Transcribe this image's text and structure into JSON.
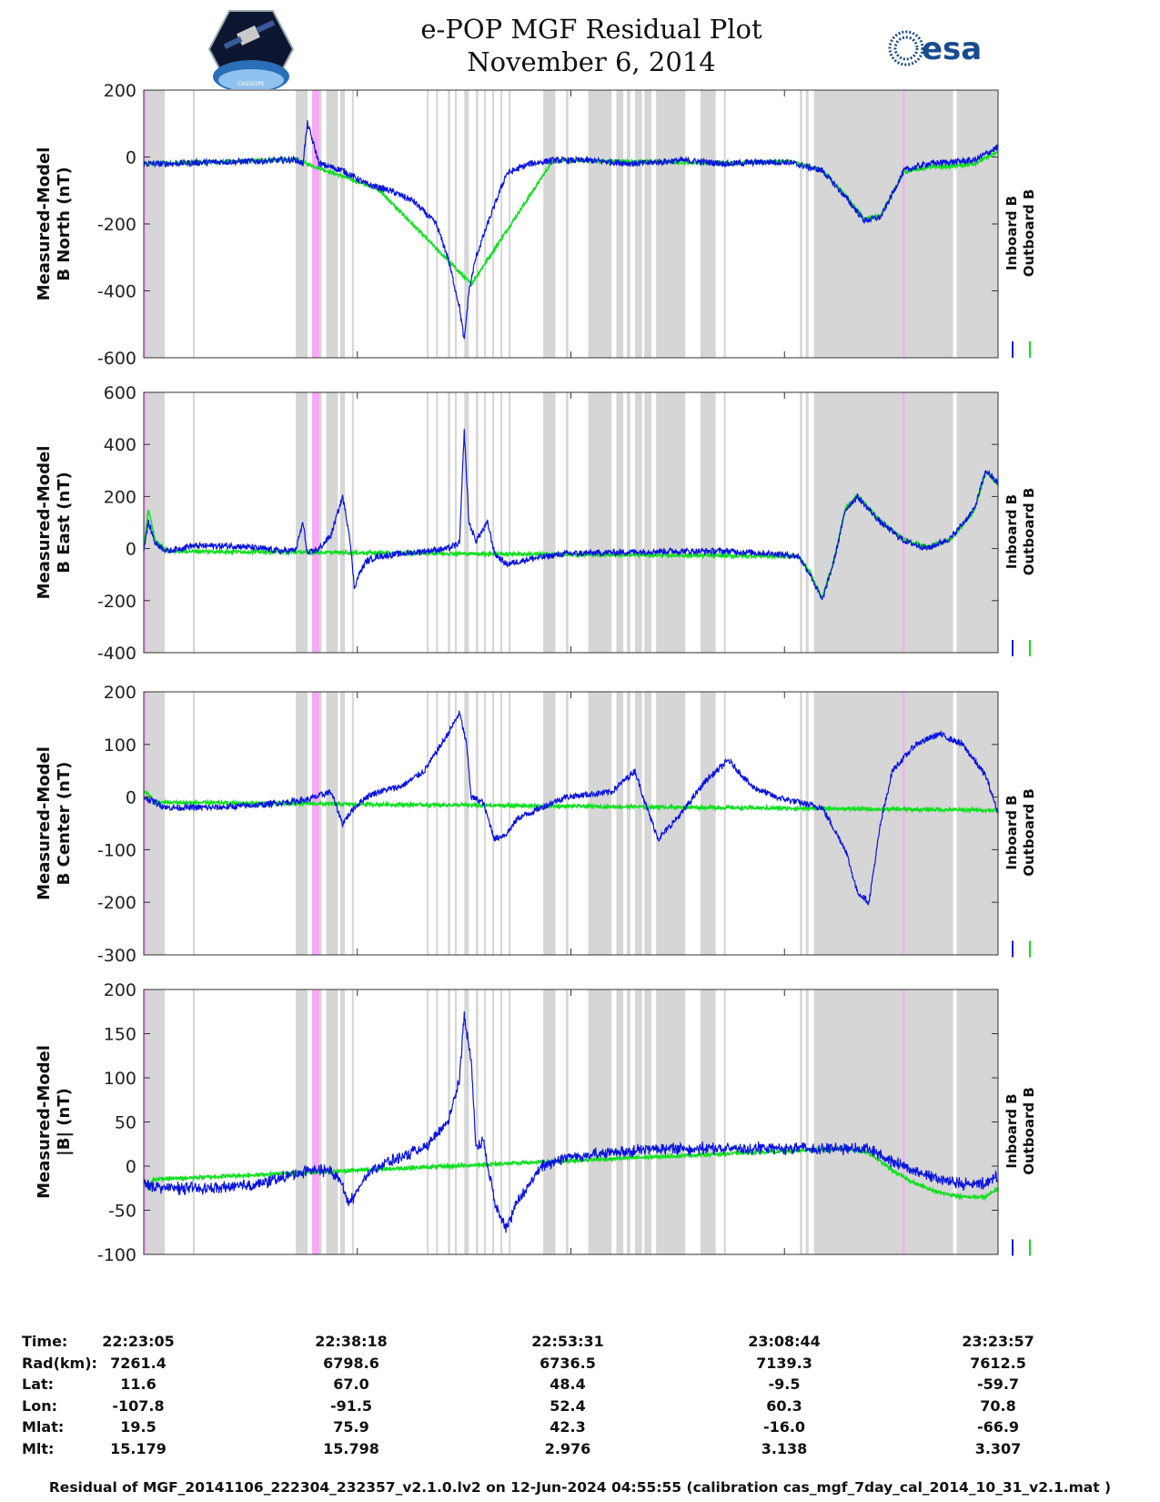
{
  "title": {
    "line1": "e-POP MGF Residual Plot",
    "line2": "November 6, 2014"
  },
  "logos": {
    "left": "CASSIOPE",
    "right": "esa"
  },
  "colors": {
    "inboard": "#0a14e0",
    "outboard": "#10e020",
    "gap": "#d6d6d6",
    "flag": "#f7a8f7"
  },
  "legend": {
    "inboard": "Inboard B",
    "outboard": "Outboard B"
  },
  "chart_data": [
    {
      "type": "line",
      "title": "",
      "ylabel": [
        "Measured-Model",
        "B North (nT)"
      ],
      "ylim": [
        -600,
        200
      ],
      "yticks": [
        200,
        0,
        -200,
        -400,
        -600
      ],
      "xlabel": "",
      "xlim": [
        0,
        3652
      ],
      "series": [
        {
          "name": "Inboard B",
          "x": [
            0,
            100,
            300,
            500,
            650,
            680,
            700,
            750,
            850,
            950,
            1050,
            1150,
            1250,
            1300,
            1350,
            1370,
            1390,
            1420,
            1470,
            1550,
            1650,
            1750,
            1900,
            2100,
            2300,
            2500,
            2650,
            2750,
            2900,
            3000,
            3080,
            3150,
            3250,
            3350,
            3450,
            3550,
            3652
          ],
          "values": [
            -20,
            -20,
            -15,
            -12,
            -8,
            -20,
            100,
            -20,
            -40,
            -80,
            -100,
            -130,
            -200,
            -300,
            -450,
            -550,
            -400,
            -300,
            -200,
            -50,
            -20,
            -10,
            -10,
            -20,
            -10,
            -20,
            -15,
            -15,
            -40,
            -120,
            -190,
            -180,
            -40,
            -20,
            -15,
            -10,
            30
          ]
        },
        {
          "name": "Outboard B",
          "x": [
            0,
            300,
            650,
            1000,
            1400,
            1750,
            2500,
            2750,
            2900,
            3000,
            3080,
            3150,
            3250,
            3350,
            3450,
            3550,
            3652
          ],
          "values": [
            -20,
            -15,
            -8,
            -95,
            -380,
            -10,
            -18,
            -12,
            -38,
            -115,
            -185,
            -175,
            -45,
            -30,
            -28,
            -20,
            15
          ]
        }
      ]
    },
    {
      "type": "line",
      "title": "",
      "ylabel": [
        "Measured-Model",
        "B East (nT)"
      ],
      "ylim": [
        -400,
        600
      ],
      "yticks": [
        600,
        400,
        200,
        0,
        -200,
        -400
      ],
      "xlabel": "",
      "xlim": [
        0,
        3652
      ],
      "series": [
        {
          "name": "Inboard B",
          "x": [
            0,
            20,
            50,
            100,
            200,
            400,
            600,
            650,
            680,
            700,
            750,
            800,
            850,
            880,
            900,
            920,
            950,
            1000,
            1100,
            1200,
            1300,
            1350,
            1370,
            1390,
            1420,
            1470,
            1500,
            1550,
            1650,
            1800,
            2200,
            2500,
            2700,
            2800,
            2850,
            2900,
            2950,
            3000,
            3050,
            3150,
            3250,
            3350,
            3450,
            3550,
            3600,
            3652
          ],
          "values": [
            0,
            100,
            20,
            -10,
            10,
            10,
            -10,
            -5,
            100,
            -20,
            0,
            50,
            200,
            50,
            -150,
            -100,
            -50,
            -30,
            -20,
            -10,
            0,
            20,
            450,
            100,
            30,
            100,
            -20,
            -60,
            -40,
            -20,
            -10,
            -10,
            -20,
            -30,
            -100,
            -200,
            -50,
            150,
            200,
            100,
            30,
            0,
            40,
            150,
            300,
            250
          ]
        },
        {
          "name": "Outboard B",
          "x": [
            0,
            20,
            50,
            100,
            2800,
            2850,
            2900,
            2950,
            3000,
            3050,
            3150,
            3250,
            3350,
            3450,
            3550,
            3600,
            3652
          ],
          "values": [
            0,
            150,
            30,
            -10,
            -30,
            -95,
            -190,
            -45,
            155,
            205,
            105,
            35,
            5,
            35,
            145,
            295,
            245
          ]
        }
      ]
    },
    {
      "type": "line",
      "title": "",
      "ylabel": [
        "Measured-Model",
        "B Center (nT)"
      ],
      "ylim": [
        -300,
        200
      ],
      "yticks": [
        200,
        100,
        0,
        -100,
        -200,
        -300
      ],
      "xlabel": "",
      "xlim": [
        0,
        3652
      ],
      "series": [
        {
          "name": "Inboard B",
          "x": [
            0,
            100,
            300,
            500,
            700,
            800,
            850,
            900,
            950,
            1000,
            1100,
            1200,
            1300,
            1350,
            1380,
            1400,
            1450,
            1500,
            1550,
            1600,
            1700,
            1800,
            2000,
            2100,
            2150,
            2200,
            2300,
            2400,
            2500,
            2600,
            2700,
            2800,
            2900,
            3000,
            3050,
            3100,
            3150,
            3200,
            3300,
            3400,
            3500,
            3600,
            3652
          ],
          "values": [
            0,
            -20,
            -20,
            -15,
            -5,
            10,
            -50,
            -20,
            0,
            10,
            20,
            50,
            120,
            160,
            100,
            0,
            -10,
            -80,
            -70,
            -40,
            -20,
            0,
            10,
            50,
            -20,
            -80,
            -30,
            30,
            70,
            20,
            0,
            -10,
            -20,
            -100,
            -180,
            -200,
            -50,
            50,
            100,
            120,
            100,
            40,
            -30
          ]
        },
        {
          "name": "Outboard B",
          "x": [
            0,
            20,
            50,
            3652
          ],
          "values": [
            10,
            5,
            -10,
            -25
          ]
        }
      ]
    },
    {
      "type": "line",
      "title": "",
      "ylabel": [
        "Measured-Model",
        "|B| (nT)"
      ],
      "ylim": [
        -100,
        200
      ],
      "yticks": [
        200,
        150,
        100,
        50,
        0,
        -50,
        -100
      ],
      "xlabel": "",
      "xlim": [
        0,
        3652
      ],
      "series": [
        {
          "name": "Inboard B",
          "x": [
            0,
            100,
            300,
            500,
            700,
            800,
            850,
            870,
            900,
            950,
            1000,
            1100,
            1200,
            1300,
            1350,
            1370,
            1400,
            1420,
            1450,
            1500,
            1550,
            1600,
            1700,
            1800,
            2000,
            2200,
            2400,
            2600,
            2800,
            2900,
            3000,
            3100,
            3200,
            3300,
            3400,
            3500,
            3600,
            3652
          ],
          "values": [
            -20,
            -25,
            -25,
            -20,
            -5,
            -5,
            -20,
            -40,
            -35,
            -10,
            0,
            10,
            20,
            50,
            100,
            170,
            120,
            20,
            30,
            -40,
            -70,
            -40,
            0,
            10,
            15,
            20,
            20,
            20,
            20,
            20,
            20,
            20,
            5,
            -5,
            -15,
            -20,
            -20,
            -10
          ]
        },
        {
          "name": "Outboard B",
          "x": [
            0,
            20,
            40,
            3000,
            3100,
            3200,
            3300,
            3400,
            3500,
            3600,
            3652
          ],
          "values": [
            -15,
            -25,
            -15,
            20,
            15,
            -5,
            -20,
            -30,
            -35,
            -35,
            -25
          ]
        }
      ]
    }
  ],
  "gaps": [
    {
      "start": 0,
      "end": 90
    },
    {
      "start": 210,
      "end": 216
    },
    {
      "start": 650,
      "end": 700
    },
    {
      "start": 720,
      "end": 760
    },
    {
      "start": 780,
      "end": 830
    },
    {
      "start": 840,
      "end": 860
    },
    {
      "start": 890,
      "end": 896
    },
    {
      "start": 1210,
      "end": 1216
    },
    {
      "start": 1250,
      "end": 1256
    },
    {
      "start": 1300,
      "end": 1310
    },
    {
      "start": 1330,
      "end": 1336
    },
    {
      "start": 1370,
      "end": 1390
    },
    {
      "start": 1420,
      "end": 1430
    },
    {
      "start": 1455,
      "end": 1462
    },
    {
      "start": 1490,
      "end": 1496
    },
    {
      "start": 1525,
      "end": 1532
    },
    {
      "start": 1560,
      "end": 1566
    },
    {
      "start": 1708,
      "end": 1760
    },
    {
      "start": 1805,
      "end": 1815
    },
    {
      "start": 1900,
      "end": 2000
    },
    {
      "start": 2020,
      "end": 2050
    },
    {
      "start": 2065,
      "end": 2080
    },
    {
      "start": 2100,
      "end": 2130
    },
    {
      "start": 2140,
      "end": 2170
    },
    {
      "start": 2190,
      "end": 2315
    },
    {
      "start": 2380,
      "end": 2445
    },
    {
      "start": 2480,
      "end": 2488
    },
    {
      "start": 2805,
      "end": 2815
    },
    {
      "start": 2830,
      "end": 2842
    },
    {
      "start": 2865,
      "end": 3460
    },
    {
      "start": 3475,
      "end": 3652
    }
  ],
  "flags": [
    {
      "start": 0,
      "end": 10
    },
    {
      "start": 720,
      "end": 750
    },
    {
      "start": 3245,
      "end": 3249
    }
  ],
  "info": {
    "labels": [
      "Time:",
      "Rad(km):",
      "Lat:",
      "Lon:",
      "Mlat:",
      "Mlt:"
    ],
    "columns": [
      [
        "22:23:05",
        "7261.4",
        "11.6",
        "-107.8",
        "19.5",
        "15.179"
      ],
      [
        "22:38:18",
        "6798.6",
        "67.0",
        "-91.5",
        "75.9",
        "15.798"
      ],
      [
        "22:53:31",
        "6736.5",
        "48.4",
        "52.4",
        "42.3",
        "2.976"
      ],
      [
        "23:08:44",
        "7139.3",
        "-9.5",
        "60.3",
        "-16.0",
        "3.138"
      ],
      [
        "23:23:57",
        "7612.5",
        "-59.7",
        "70.8",
        "-66.9",
        "3.307"
      ]
    ]
  },
  "footer": "Residual of MGF_20141106_222304_232357_v2.1.0.lv2 on 12-Jun-2024 04:55:55 (calibration cas_mgf_7day_cal_2014_10_31_v2.1.mat )"
}
